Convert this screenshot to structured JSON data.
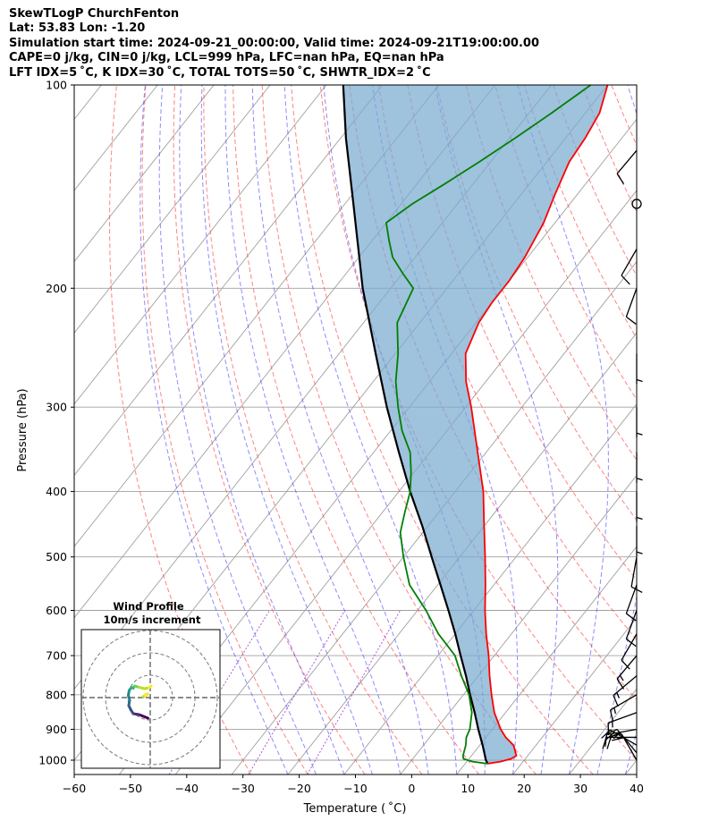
{
  "header": {
    "line1": "SkewTLogP ChurchFenton",
    "line2": "Lat: 53.83   Lon: -1.20",
    "line3": "Simulation start time: 2024-09-21_00:00:00, Valid time: 2024-09-21T19:00:00.00",
    "line4": "CAPE=0 j/kg, CIN=0 j/kg, LCL=999 hPa, LFC=nan hPa, EQ=nan hPa",
    "line5": "LFT IDX=5 ˚C, K IDX=30 ˚C, TOTAL TOTS=50 ˚C, SHWTR_IDX=2 ˚C"
  },
  "chart_data": {
    "type": "line",
    "subtype": "skew-t log-p",
    "xlabel": "Temperature ( ˚C)",
    "ylabel": "Pressure (hPa)",
    "xlim": [
      -60,
      40
    ],
    "ylim": [
      1050,
      100
    ],
    "x_ticks": [
      -60,
      -50,
      -40,
      -30,
      -20,
      -10,
      0,
      10,
      20,
      30,
      40
    ],
    "x_tick_labels": [
      "−60",
      "−50",
      "−40",
      "−30",
      "−20",
      "−10",
      "0",
      "10",
      "20",
      "30",
      "40"
    ],
    "y_ticks": [
      1000,
      900,
      800,
      700,
      600,
      500,
      400,
      300,
      200,
      100
    ],
    "y_tick_labels": [
      "1000",
      "900",
      "800",
      "700",
      "600",
      "500",
      "400",
      "300",
      "200",
      "100"
    ],
    "colors": {
      "temperature": "#ff0000",
      "dewpoint": "#008000",
      "parcel": "#000000",
      "cape_fill": "#7aaad0",
      "dry_adiabat": "#ff4040",
      "moist_adiabat": "#4040ff",
      "mixing_ratio": "#9932cc",
      "isotherm": "#a0a0a0"
    },
    "temperature": {
      "name": "Temperature",
      "pressure": [
        1012,
        1005,
        995,
        985,
        950,
        925,
        900,
        850,
        800,
        750,
        700,
        650,
        600,
        550,
        500,
        450,
        400,
        350,
        300,
        275,
        250,
        225,
        210,
        195,
        180,
        160,
        145,
        130,
        120,
        110,
        100
      ],
      "values": [
        14,
        16,
        17.5,
        18,
        16,
        13.5,
        11.5,
        8,
        5,
        2,
        -1,
        -4.5,
        -8,
        -11.5,
        -15.5,
        -20,
        -25,
        -31.5,
        -39,
        -43.5,
        -47.5,
        -49.5,
        -50,
        -50,
        -50.5,
        -52,
        -54,
        -56,
        -56.5,
        -57.5,
        -60
      ]
    },
    "dewpoint": {
      "name": "Dewpoint",
      "pressure": [
        1012,
        1005,
        995,
        985,
        950,
        925,
        900,
        850,
        800,
        750,
        700,
        650,
        600,
        550,
        500,
        460,
        430,
        400,
        375,
        350,
        325,
        300,
        275,
        250,
        225,
        200,
        190,
        180,
        170,
        160,
        150,
        140,
        130,
        120,
        110,
        100
      ],
      "values": [
        14,
        11,
        9,
        8.5,
        7.5,
        6.5,
        6,
        4,
        1,
        -3,
        -7,
        -13,
        -18.5,
        -25,
        -30,
        -34,
        -36,
        -38,
        -40.5,
        -43.5,
        -48,
        -52,
        -56,
        -59.5,
        -64,
        -66,
        -70,
        -74,
        -77,
        -80,
        -78,
        -75,
        -72,
        -69,
        -66,
        -63
      ]
    },
    "parcel": {
      "name": "Parcel profile",
      "pressure": [
        1012,
        1000,
        950,
        900,
        850,
        800,
        750,
        700,
        650,
        600,
        550,
        500,
        450,
        400,
        350,
        300,
        250,
        200,
        150,
        120,
        100
      ],
      "values": [
        14,
        13.2,
        10.5,
        7.5,
        4.5,
        1.2,
        -2.2,
        -6,
        -10,
        -14.5,
        -19.5,
        -25,
        -31,
        -38,
        -45.5,
        -54,
        -63.5,
        -75,
        -88.5,
        -99,
        -107
      ]
    },
    "shaded_region": {
      "name": "Area between temperature and parcel profile",
      "from_series": "parcel",
      "to_series": "temperature",
      "pressure_range": [
        1012,
        100
      ]
    },
    "wind_barbs": {
      "pressure": [
        1000,
        975,
        950,
        925,
        900,
        850,
        800,
        750,
        700,
        650,
        600,
        550,
        500,
        450,
        400,
        350,
        300,
        250,
        200,
        175,
        150,
        125
      ],
      "speed_kt": [
        20,
        25,
        25,
        20,
        15,
        15,
        15,
        15,
        15,
        10,
        10,
        10,
        10,
        5,
        5,
        5,
        5,
        5,
        10,
        10,
        0,
        10
      ],
      "direction_deg": [
        330,
        320,
        300,
        270,
        260,
        250,
        240,
        230,
        220,
        210,
        200,
        200,
        190,
        180,
        180,
        180,
        180,
        180,
        200,
        210,
        0,
        220
      ]
    },
    "inset": {
      "title": "Wind Profile",
      "subtitle": "10m/s increment",
      "type": "hodograph",
      "u": [
        -0.5,
        -1.5,
        -2.5,
        -3.8,
        -4.3,
        -4.8,
        -4.6,
        -4.9,
        -4.7,
        -4.2,
        -3.8,
        -3.5,
        -2.5,
        -1.3,
        -0.3,
        0.2
      ],
      "v": [
        -4.6,
        -4.2,
        -3.8,
        -3.6,
        -2.8,
        -1.8,
        -0.6,
        0.5,
        1.6,
        2.3,
        2.1,
        2.6,
        2.3,
        2.0,
        2.2,
        2.6
      ],
      "tail_u": [
        -1.5,
        -1.2,
        -0.6
      ],
      "tail_v": [
        0.2,
        0.5,
        0.8
      ]
    }
  }
}
